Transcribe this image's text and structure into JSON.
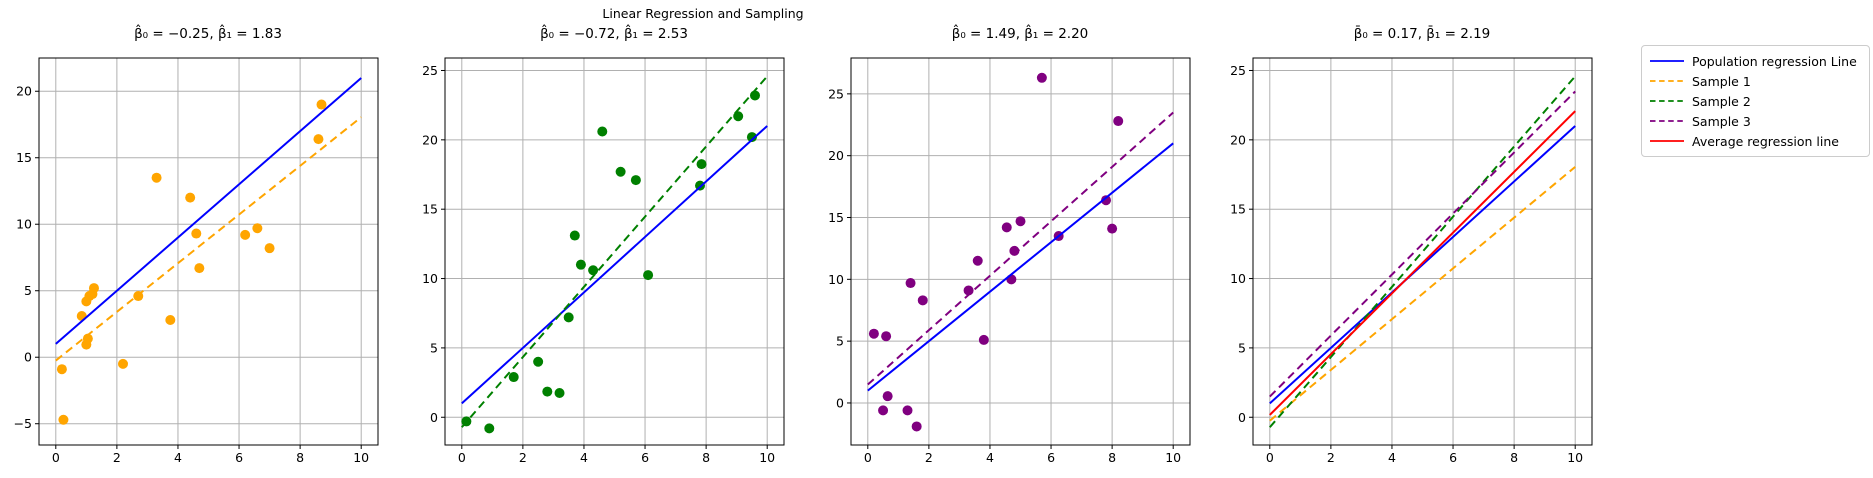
{
  "figure": {
    "suptitle": "Linear Regression and Sampling",
    "background": "#ffffff"
  },
  "colors": {
    "population_line": "#0000ff",
    "sample1": "#ffa500",
    "sample2": "#008000",
    "sample3": "#800080",
    "average_line": "#ff0000",
    "grid": "#b0b0b0",
    "spine": "#000000"
  },
  "legend": {
    "items": [
      {
        "label": "Population regression Line",
        "color": "#0000ff",
        "dash": false
      },
      {
        "label": "Sample 1",
        "color": "#ffa500",
        "dash": true
      },
      {
        "label": "Sample 2",
        "color": "#008000",
        "dash": true
      },
      {
        "label": "Sample 3",
        "color": "#800080",
        "dash": true
      },
      {
        "label": "Average regression line",
        "color": "#ff0000",
        "dash": false
      }
    ]
  },
  "chart_data": [
    {
      "type": "scatter",
      "title": "β̂₀ = −0.25, β̂₁ = 1.83",
      "xlim": [
        -0.55,
        10.55
      ],
      "ylim": [
        -6.6,
        22.5
      ],
      "xticks": [
        0,
        2,
        4,
        6,
        8,
        10
      ],
      "yticks": [
        -5,
        0,
        5,
        10,
        15,
        20
      ],
      "grid": true,
      "scatter": {
        "name": "Sample 1 points",
        "color": "#ffa500",
        "points": [
          [
            0.25,
            -4.7
          ],
          [
            0.2,
            -0.9
          ],
          [
            1.0,
            0.95
          ],
          [
            1.05,
            1.4
          ],
          [
            0.85,
            3.1
          ],
          [
            1.0,
            4.2
          ],
          [
            1.1,
            4.6
          ],
          [
            1.2,
            4.75
          ],
          [
            1.25,
            5.2
          ],
          [
            2.2,
            -0.5
          ],
          [
            2.7,
            4.6
          ],
          [
            3.3,
            13.5
          ],
          [
            3.75,
            2.8
          ],
          [
            4.4,
            12.0
          ],
          [
            4.6,
            9.3
          ],
          [
            4.7,
            6.7
          ],
          [
            6.2,
            9.2
          ],
          [
            6.6,
            9.7
          ],
          [
            7.0,
            8.2
          ],
          [
            8.6,
            16.4
          ],
          [
            8.7,
            19.0
          ]
        ]
      },
      "lines": [
        {
          "name": "Population regression Line",
          "color": "#0000ff",
          "dash": false,
          "intercept": 1.0,
          "slope": 2.0
        },
        {
          "name": "Sample 1 regression",
          "color": "#ffa500",
          "dash": true,
          "intercept": -0.25,
          "slope": 1.83
        }
      ]
    },
    {
      "type": "scatter",
      "title": "β̂₀ = −0.72, β̂₁ = 2.53",
      "xlim": [
        -0.55,
        10.55
      ],
      "ylim": [
        -2.0,
        25.9
      ],
      "xticks": [
        0,
        2,
        4,
        6,
        8,
        10
      ],
      "yticks": [
        0,
        5,
        10,
        15,
        20,
        25
      ],
      "grid": true,
      "scatter": {
        "name": "Sample 2 points",
        "color": "#008000",
        "points": [
          [
            0.15,
            -0.3
          ],
          [
            0.9,
            -0.8
          ],
          [
            1.7,
            2.9
          ],
          [
            2.5,
            4.0
          ],
          [
            2.8,
            1.85
          ],
          [
            3.2,
            1.75
          ],
          [
            3.5,
            7.2
          ],
          [
            3.7,
            13.1
          ],
          [
            3.9,
            11.0
          ],
          [
            4.3,
            10.6
          ],
          [
            4.6,
            20.6
          ],
          [
            5.2,
            17.7
          ],
          [
            5.7,
            17.1
          ],
          [
            6.1,
            10.25
          ],
          [
            7.8,
            16.7
          ],
          [
            7.85,
            18.25
          ],
          [
            9.05,
            21.7
          ],
          [
            9.5,
            20.2
          ],
          [
            9.6,
            23.2
          ]
        ]
      },
      "lines": [
        {
          "name": "Population regression Line",
          "color": "#0000ff",
          "dash": false,
          "intercept": 1.0,
          "slope": 2.0
        },
        {
          "name": "Sample 2 regression",
          "color": "#008000",
          "dash": true,
          "intercept": -0.72,
          "slope": 2.53
        }
      ]
    },
    {
      "type": "scatter",
      "title": "β̂₀ = 1.49, β̂₁ = 2.20",
      "xlim": [
        -0.55,
        10.55
      ],
      "ylim": [
        -3.4,
        27.9
      ],
      "xticks": [
        0,
        2,
        4,
        6,
        8,
        10
      ],
      "yticks": [
        0,
        5,
        10,
        15,
        20,
        25
      ],
      "grid": true,
      "scatter": {
        "name": "Sample 3 points",
        "color": "#800080",
        "points": [
          [
            0.2,
            5.6
          ],
          [
            0.6,
            5.4
          ],
          [
            0.65,
            0.55
          ],
          [
            0.5,
            -0.6
          ],
          [
            1.3,
            -0.6
          ],
          [
            1.6,
            -1.9
          ],
          [
            1.4,
            9.7
          ],
          [
            1.8,
            8.3
          ],
          [
            3.3,
            9.1
          ],
          [
            3.6,
            11.5
          ],
          [
            3.8,
            5.1
          ],
          [
            4.55,
            14.2
          ],
          [
            4.7,
            10.0
          ],
          [
            4.8,
            12.3
          ],
          [
            5.0,
            14.7
          ],
          [
            5.7,
            26.3
          ],
          [
            6.25,
            13.5
          ],
          [
            7.8,
            16.4
          ],
          [
            8.0,
            14.1
          ],
          [
            8.2,
            22.8
          ]
        ]
      },
      "lines": [
        {
          "name": "Population regression Line",
          "color": "#0000ff",
          "dash": false,
          "intercept": 1.0,
          "slope": 2.0
        },
        {
          "name": "Sample 3 regression",
          "color": "#800080",
          "dash": true,
          "intercept": 1.49,
          "slope": 2.2
        }
      ]
    },
    {
      "type": "line",
      "title": "β̄₀ = 0.17, β̄₁ = 2.19",
      "xlim": [
        -0.55,
        10.55
      ],
      "ylim": [
        -2.0,
        25.9
      ],
      "xticks": [
        0,
        2,
        4,
        6,
        8,
        10
      ],
      "yticks": [
        0,
        5,
        10,
        15,
        20,
        25
      ],
      "grid": true,
      "scatter": null,
      "lines": [
        {
          "name": "Population regression Line",
          "color": "#0000ff",
          "dash": false,
          "intercept": 1.0,
          "slope": 2.0
        },
        {
          "name": "Sample 1 regression",
          "color": "#ffa500",
          "dash": true,
          "intercept": -0.25,
          "slope": 1.83
        },
        {
          "name": "Sample 2 regression",
          "color": "#008000",
          "dash": true,
          "intercept": -0.72,
          "slope": 2.53
        },
        {
          "name": "Sample 3 regression",
          "color": "#800080",
          "dash": true,
          "intercept": 1.49,
          "slope": 2.2
        },
        {
          "name": "Average regression line",
          "color": "#ff0000",
          "dash": false,
          "intercept": 0.17,
          "slope": 2.19
        }
      ]
    }
  ]
}
